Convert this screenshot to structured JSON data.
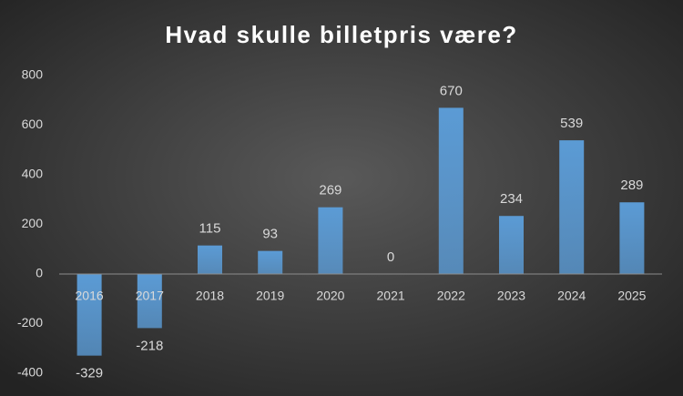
{
  "chart_data": {
    "type": "bar",
    "title": "Hvad skulle billetpris være?",
    "categories": [
      "2016",
      "2017",
      "2018",
      "2019",
      "2020",
      "2021",
      "2022",
      "2023",
      "2024",
      "2025"
    ],
    "values": [
      -329,
      -218,
      115,
      93,
      269,
      0,
      670,
      234,
      539,
      289
    ],
    "color": "#5b9bd5",
    "ylim": [
      -400,
      800
    ],
    "yticks": [
      -400,
      -200,
      0,
      200,
      400,
      600,
      800
    ],
    "grid": false
  }
}
